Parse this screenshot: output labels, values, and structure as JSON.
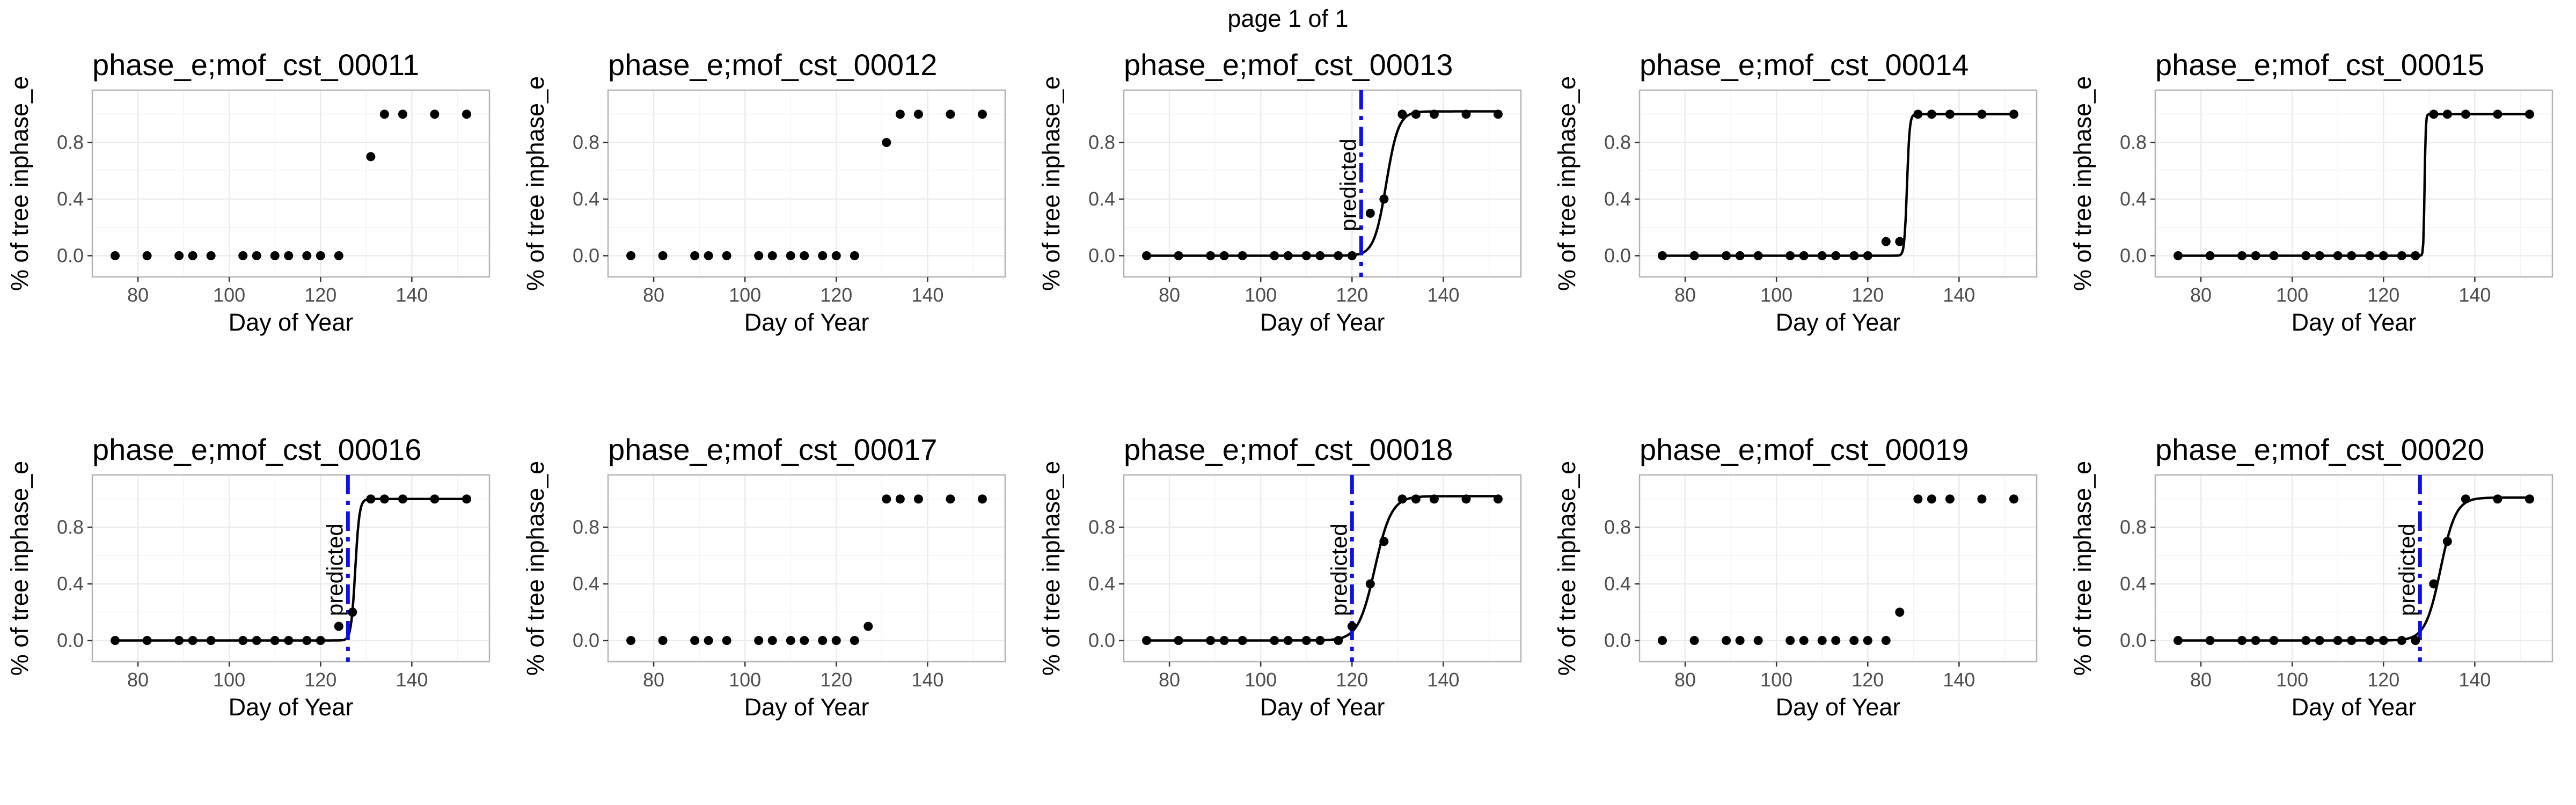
{
  "page_label": "page 1 of 1",
  "colors": {
    "predicted_line": "#1010e6",
    "points": "#000000",
    "grid": "#ebebeb",
    "border": "#b3b3b3"
  },
  "chart_data": [
    {
      "type": "scatter",
      "title": "phase_e;mof_cst_00011",
      "xlabel": "Day of Year",
      "ylabel": "% of tree inphase_e",
      "xlim": [
        70,
        157
      ],
      "ylim": [
        -0.15,
        1.17
      ],
      "xticks": [
        80,
        100,
        120,
        140
      ],
      "yticks": [
        0.0,
        0.4,
        0.8
      ],
      "points": [
        [
          75,
          0
        ],
        [
          82,
          0
        ],
        [
          89,
          0
        ],
        [
          92,
          0
        ],
        [
          96,
          0
        ],
        [
          103,
          0
        ],
        [
          106,
          0
        ],
        [
          110,
          0
        ],
        [
          113,
          0
        ],
        [
          117,
          0
        ],
        [
          120,
          0
        ],
        [
          124,
          0
        ],
        [
          131,
          0.7
        ],
        [
          134,
          1
        ],
        [
          138,
          1
        ],
        [
          145,
          1
        ],
        [
          152,
          1
        ]
      ],
      "fit": null,
      "predicted": null
    },
    {
      "type": "scatter",
      "title": "phase_e;mof_cst_00012",
      "xlabel": "Day of Year",
      "ylabel": "% of tree inphase_e",
      "xlim": [
        70,
        157
      ],
      "ylim": [
        -0.15,
        1.17
      ],
      "xticks": [
        80,
        100,
        120,
        140
      ],
      "yticks": [
        0.0,
        0.4,
        0.8
      ],
      "points": [
        [
          75,
          0
        ],
        [
          82,
          0
        ],
        [
          89,
          0
        ],
        [
          92,
          0
        ],
        [
          96,
          0
        ],
        [
          103,
          0
        ],
        [
          106,
          0
        ],
        [
          110,
          0
        ],
        [
          113,
          0
        ],
        [
          117,
          0
        ],
        [
          120,
          0
        ],
        [
          124,
          0
        ],
        [
          131,
          0.8
        ],
        [
          134,
          1
        ],
        [
          138,
          1
        ],
        [
          145,
          1
        ],
        [
          152,
          1
        ]
      ],
      "fit": null,
      "predicted": null
    },
    {
      "type": "scatter",
      "title": "phase_e;mof_cst_00013",
      "xlabel": "Day of Year",
      "ylabel": "% of tree inphase_e",
      "xlim": [
        70,
        157
      ],
      "ylim": [
        -0.15,
        1.17
      ],
      "xticks": [
        80,
        100,
        120,
        140
      ],
      "yticks": [
        0.0,
        0.4,
        0.8
      ],
      "points": [
        [
          75,
          0
        ],
        [
          82,
          0
        ],
        [
          89,
          0
        ],
        [
          92,
          0
        ],
        [
          96,
          0
        ],
        [
          103,
          0
        ],
        [
          106,
          0
        ],
        [
          110,
          0
        ],
        [
          113,
          0
        ],
        [
          117,
          0
        ],
        [
          120,
          0
        ],
        [
          124,
          0.3
        ],
        [
          127,
          0.4
        ],
        [
          131,
          1
        ],
        [
          134,
          1
        ],
        [
          138,
          1
        ],
        [
          145,
          1
        ],
        [
          152,
          1
        ]
      ],
      "fit": {
        "x0": 127.5,
        "k": 0.75,
        "top": 1.02
      },
      "predicted": {
        "x": 122,
        "label": "predicted"
      }
    },
    {
      "type": "scatter",
      "title": "phase_e;mof_cst_00014",
      "xlabel": "Day of Year",
      "ylabel": "% of tree inphase_e",
      "xlim": [
        70,
        157
      ],
      "ylim": [
        -0.15,
        1.17
      ],
      "xticks": [
        80,
        100,
        120,
        140
      ],
      "yticks": [
        0.0,
        0.4,
        0.8
      ],
      "points": [
        [
          75,
          0
        ],
        [
          82,
          0
        ],
        [
          89,
          0
        ],
        [
          92,
          0
        ],
        [
          96,
          0
        ],
        [
          103,
          0
        ],
        [
          106,
          0
        ],
        [
          110,
          0
        ],
        [
          113,
          0
        ],
        [
          117,
          0
        ],
        [
          120,
          0
        ],
        [
          124,
          0.1
        ],
        [
          127,
          0.1
        ],
        [
          131,
          1
        ],
        [
          134,
          1
        ],
        [
          138,
          1
        ],
        [
          145,
          1
        ],
        [
          152,
          1
        ]
      ],
      "fit": {
        "x0": 128.6,
        "k": 3.5,
        "top": 1.0
      },
      "predicted": null
    },
    {
      "type": "scatter",
      "title": "phase_e;mof_cst_00015",
      "xlabel": "Day of Year",
      "ylabel": "% of tree inphase_e",
      "xlim": [
        70,
        157
      ],
      "ylim": [
        -0.15,
        1.17
      ],
      "xticks": [
        80,
        100,
        120,
        140
      ],
      "yticks": [
        0.0,
        0.4,
        0.8
      ],
      "points": [
        [
          75,
          0
        ],
        [
          82,
          0
        ],
        [
          89,
          0
        ],
        [
          92,
          0
        ],
        [
          96,
          0
        ],
        [
          103,
          0
        ],
        [
          106,
          0
        ],
        [
          110,
          0
        ],
        [
          113,
          0
        ],
        [
          117,
          0
        ],
        [
          120,
          0
        ],
        [
          124,
          0
        ],
        [
          127,
          0
        ],
        [
          131,
          1
        ],
        [
          134,
          1
        ],
        [
          138,
          1
        ],
        [
          145,
          1
        ],
        [
          152,
          1
        ]
      ],
      "fit": {
        "x0": 129,
        "k": 8,
        "top": 1.0
      },
      "predicted": null
    },
    {
      "type": "scatter",
      "title": "phase_e;mof_cst_00016",
      "xlabel": "Day of Year",
      "ylabel": "% of tree inphase_e",
      "xlim": [
        70,
        157
      ],
      "ylim": [
        -0.15,
        1.17
      ],
      "xticks": [
        80,
        100,
        120,
        140
      ],
      "yticks": [
        0.0,
        0.4,
        0.8
      ],
      "points": [
        [
          75,
          0
        ],
        [
          82,
          0
        ],
        [
          89,
          0
        ],
        [
          92,
          0
        ],
        [
          96,
          0
        ],
        [
          103,
          0
        ],
        [
          106,
          0
        ],
        [
          110,
          0
        ],
        [
          113,
          0
        ],
        [
          117,
          0
        ],
        [
          120,
          0
        ],
        [
          124,
          0.1
        ],
        [
          127,
          0.2
        ],
        [
          131,
          1
        ],
        [
          134,
          1
        ],
        [
          138,
          1
        ],
        [
          145,
          1
        ],
        [
          152,
          1
        ]
      ],
      "fit": {
        "x0": 127.6,
        "k": 2.2,
        "top": 1.0
      },
      "predicted": {
        "x": 126,
        "label": "predicted"
      }
    },
    {
      "type": "scatter",
      "title": "phase_e;mof_cst_00017",
      "xlabel": "Day of Year",
      "ylabel": "% of tree inphase_e",
      "xlim": [
        70,
        157
      ],
      "ylim": [
        -0.15,
        1.17
      ],
      "xticks": [
        80,
        100,
        120,
        140
      ],
      "yticks": [
        0.0,
        0.4,
        0.8
      ],
      "points": [
        [
          75,
          0
        ],
        [
          82,
          0
        ],
        [
          89,
          0
        ],
        [
          92,
          0
        ],
        [
          96,
          0
        ],
        [
          103,
          0
        ],
        [
          106,
          0
        ],
        [
          110,
          0
        ],
        [
          113,
          0
        ],
        [
          117,
          0
        ],
        [
          120,
          0
        ],
        [
          124,
          0
        ],
        [
          127,
          0.1
        ],
        [
          131,
          1
        ],
        [
          134,
          1
        ],
        [
          138,
          1
        ],
        [
          145,
          1
        ],
        [
          152,
          1
        ]
      ],
      "fit": null,
      "predicted": null
    },
    {
      "type": "scatter",
      "title": "phase_e;mof_cst_00018",
      "xlabel": "Day of Year",
      "ylabel": "% of tree inphase_e",
      "xlim": [
        70,
        157
      ],
      "ylim": [
        -0.15,
        1.17
      ],
      "xticks": [
        80,
        100,
        120,
        140
      ],
      "yticks": [
        0.0,
        0.4,
        0.8
      ],
      "points": [
        [
          75,
          0
        ],
        [
          82,
          0
        ],
        [
          89,
          0
        ],
        [
          92,
          0
        ],
        [
          96,
          0
        ],
        [
          103,
          0
        ],
        [
          106,
          0
        ],
        [
          110,
          0
        ],
        [
          113,
          0
        ],
        [
          117,
          0
        ],
        [
          120,
          0.1
        ],
        [
          124,
          0.4
        ],
        [
          127,
          0.7
        ],
        [
          131,
          1
        ],
        [
          134,
          1
        ],
        [
          138,
          1
        ],
        [
          145,
          1
        ],
        [
          152,
          1
        ]
      ],
      "fit": {
        "x0": 125,
        "k": 0.55,
        "top": 1.02
      },
      "predicted": {
        "x": 120,
        "label": "predicted"
      }
    },
    {
      "type": "scatter",
      "title": "phase_e;mof_cst_00019",
      "xlabel": "Day of Year",
      "ylabel": "% of tree inphase_e",
      "xlim": [
        70,
        157
      ],
      "ylim": [
        -0.15,
        1.17
      ],
      "xticks": [
        80,
        100,
        120,
        140
      ],
      "yticks": [
        0.0,
        0.4,
        0.8
      ],
      "points": [
        [
          75,
          0
        ],
        [
          82,
          0
        ],
        [
          89,
          0
        ],
        [
          92,
          0
        ],
        [
          96,
          0
        ],
        [
          103,
          0
        ],
        [
          106,
          0
        ],
        [
          110,
          0
        ],
        [
          113,
          0
        ],
        [
          117,
          0
        ],
        [
          120,
          0
        ],
        [
          124,
          0
        ],
        [
          127,
          0.2
        ],
        [
          131,
          1
        ],
        [
          134,
          1
        ],
        [
          138,
          1
        ],
        [
          145,
          1
        ],
        [
          152,
          1
        ]
      ],
      "fit": null,
      "predicted": null
    },
    {
      "type": "scatter",
      "title": "phase_e;mof_cst_00020",
      "xlabel": "Day of Year",
      "ylabel": "% of tree inphase_e",
      "xlim": [
        70,
        157
      ],
      "ylim": [
        -0.15,
        1.17
      ],
      "xticks": [
        80,
        100,
        120,
        140
      ],
      "yticks": [
        0.0,
        0.4,
        0.8
      ],
      "points": [
        [
          75,
          0
        ],
        [
          82,
          0
        ],
        [
          89,
          0
        ],
        [
          92,
          0
        ],
        [
          96,
          0
        ],
        [
          103,
          0
        ],
        [
          106,
          0
        ],
        [
          110,
          0
        ],
        [
          113,
          0
        ],
        [
          117,
          0
        ],
        [
          120,
          0
        ],
        [
          124,
          0
        ],
        [
          127,
          0
        ],
        [
          131,
          0.4
        ],
        [
          134,
          0.7
        ],
        [
          138,
          1
        ],
        [
          145,
          1
        ],
        [
          152,
          1
        ]
      ],
      "fit": {
        "x0": 132.5,
        "k": 0.6,
        "top": 1.01
      },
      "predicted": {
        "x": 128,
        "label": "predicted"
      }
    }
  ]
}
